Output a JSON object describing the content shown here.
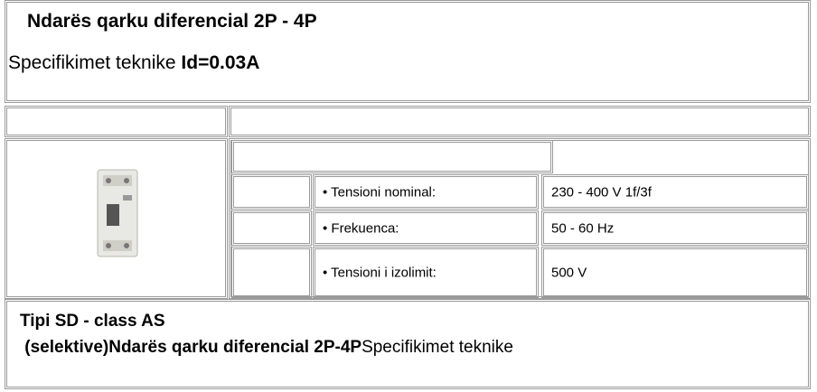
{
  "header": {
    "title": "Ndarës qarku diferencial 2P - 4P",
    "subtitle_text": "Specifikimet teknike ",
    "subtitle_bold": "Id=0.03A"
  },
  "specs": {
    "rows": [
      {
        "label": "• Tensioni nominal:",
        "value": "230 - 400 V 1f/3f"
      },
      {
        "label": "• Frekuenca:",
        "value": "50 - 60 Hz"
      },
      {
        "label": "• Tensioni i izolimit:",
        "value": "500 V"
      }
    ]
  },
  "footer": {
    "line1": "Tipi SD - class AS",
    "line2_bold": " (selektive)Ndarës qarku diferencial 2P-4P",
    "line2_text": "Specifikimet teknike"
  }
}
